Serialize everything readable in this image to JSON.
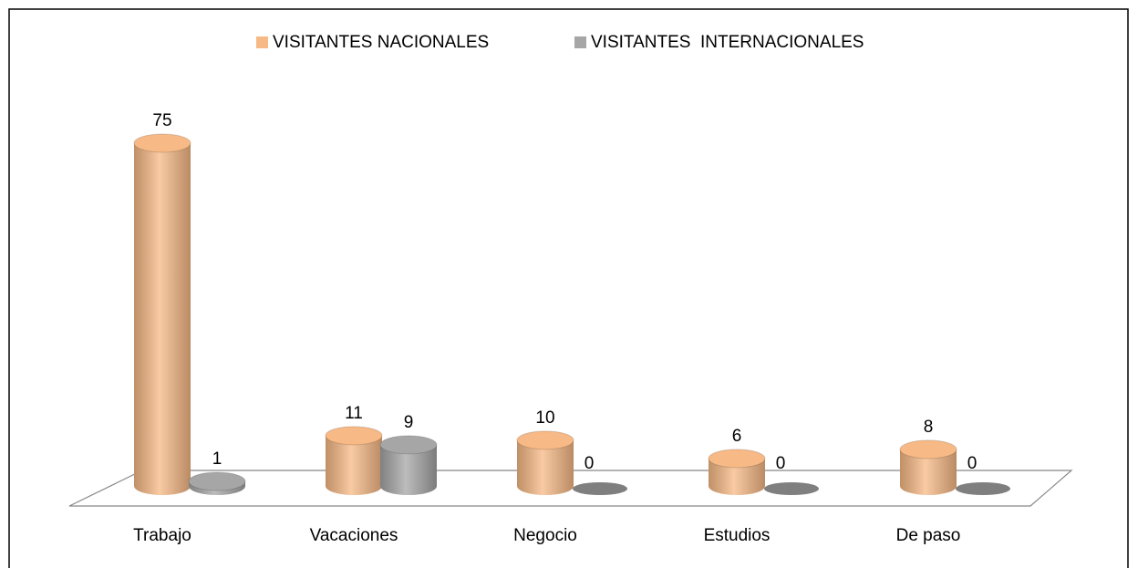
{
  "chart_data": {
    "type": "bar",
    "categories": [
      "Trabajo",
      "Vacaciones",
      "Negocio",
      "Estudios",
      "De paso"
    ],
    "series": [
      {
        "name": "VISITANTES NACIONALES",
        "color": "#f7b985",
        "values": [
          75,
          11,
          10,
          6,
          8
        ]
      },
      {
        "name": "VISITANTES  INTERNACIONALES",
        "color": "#a6a6a6",
        "values": [
          1,
          9,
          0,
          0,
          0
        ]
      }
    ],
    "legend": "top"
  }
}
